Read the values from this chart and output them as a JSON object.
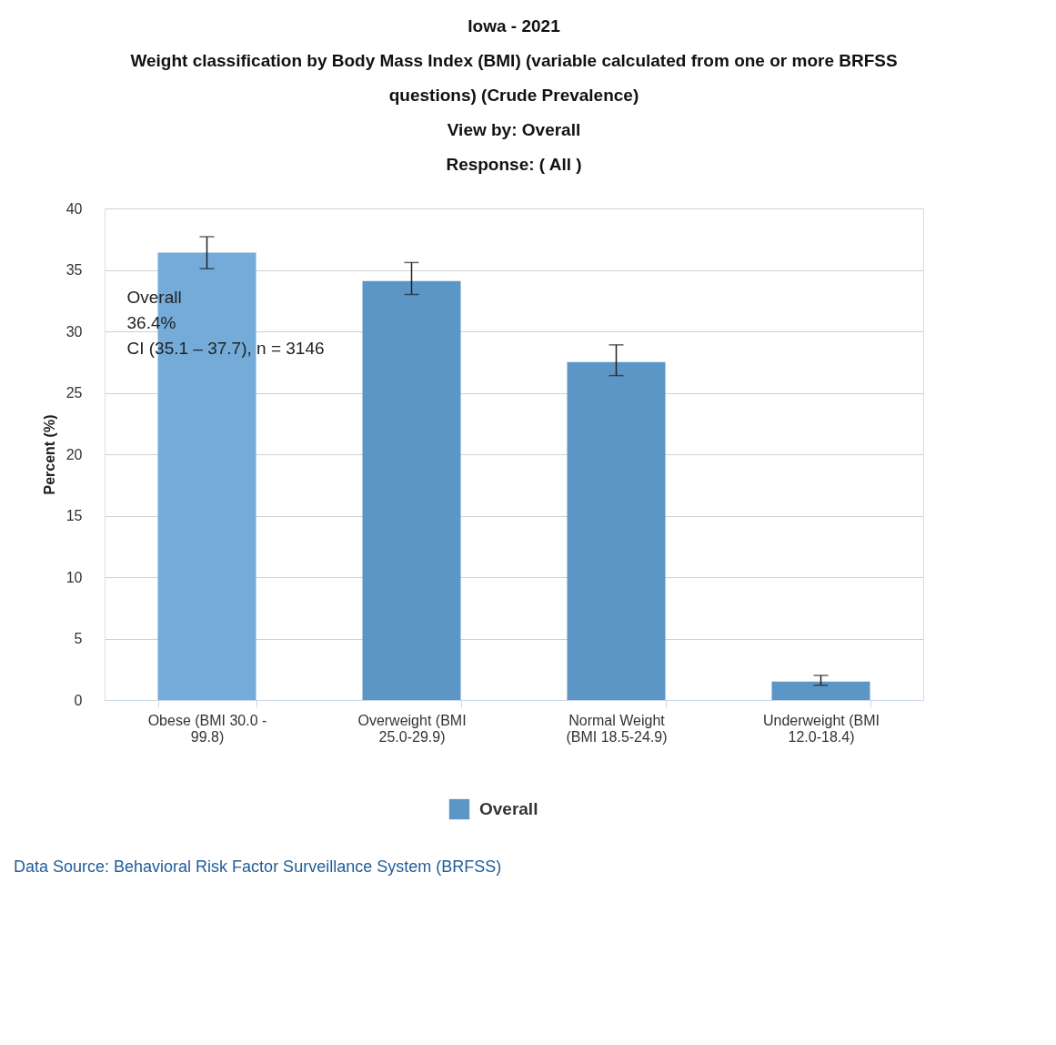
{
  "chart_data": {
    "type": "bar",
    "title": [
      "Iowa - 2021",
      "Weight classification by Body Mass Index (BMI) (variable calculated from one or more BRFSS",
      "questions) (Crude Prevalence)",
      "View by: Overall",
      "Response: ( All )"
    ],
    "ylabel": "Percent (%)",
    "categories": [
      "Obese (BMI 30.0 - 99.8)",
      "Overweight (BMI 25.0-29.9)",
      "Normal Weight (BMI 18.5-24.9)",
      "Underweight (BMI 12.0-18.4)"
    ],
    "series": [
      {
        "name": "Overall",
        "color": "#5b96c7",
        "colors": [
          "#74abd9",
          "#5b96c7",
          "#5b96c7",
          "#5b96c7"
        ],
        "values": [
          36.4,
          34.1,
          27.5,
          1.5
        ],
        "errors": [
          [
            35.1,
            37.7
          ],
          [
            33.0,
            35.6
          ],
          [
            26.4,
            28.9
          ],
          [
            1.2,
            2.0
          ]
        ]
      }
    ],
    "ylim": [
      0,
      40
    ],
    "yticks": [
      0,
      5,
      10,
      15,
      20,
      25,
      30,
      35,
      40
    ],
    "grid": "y",
    "legend": "bottom",
    "annotations": [
      {
        "text": "Overall\n36.4%\nCI (35.1 – 37.7), n = 3146",
        "x": "Obese (BMI 30.0 - 99.8)",
        "y": 36.4
      },
      "Data Source: Behavioral Risk Factor Surveillance System (BRFSS)"
    ]
  }
}
